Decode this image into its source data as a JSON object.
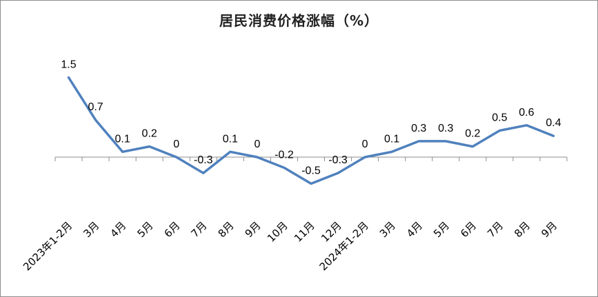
{
  "chart_data": {
    "type": "line",
    "title": "居民消费价格涨幅（%）",
    "xlabel": "",
    "ylabel": "",
    "ylim": [
      -0.8,
      1.8
    ],
    "grid": false,
    "legend": "none",
    "categories": [
      "2023年1-2月",
      "3月",
      "4月",
      "5月",
      "6月",
      "7月",
      "8月",
      "9月",
      "10月",
      "11月",
      "12月",
      "2024年1-2月",
      "3月",
      "4月",
      "5月",
      "6月",
      "7月",
      "8月",
      "9月"
    ],
    "series": [
      {
        "color": "#4f81bd",
        "values": [
          1.5,
          0.7,
          0.1,
          0.2,
          0,
          -0.3,
          0.1,
          0,
          -0.2,
          -0.5,
          -0.3,
          0,
          0.1,
          0.3,
          0.3,
          0.2,
          0.5,
          0.6,
          0.4
        ],
        "labels": [
          "1.5",
          "0.7",
          "0.1",
          "0.2",
          "0",
          "-0.3",
          "0.1",
          "0",
          "-0.2",
          "-0.5",
          "-0.3",
          "0",
          "0.1",
          "0.3",
          "0.3",
          "0.2",
          "0.5",
          "0.6",
          "0.4"
        ]
      }
    ]
  }
}
